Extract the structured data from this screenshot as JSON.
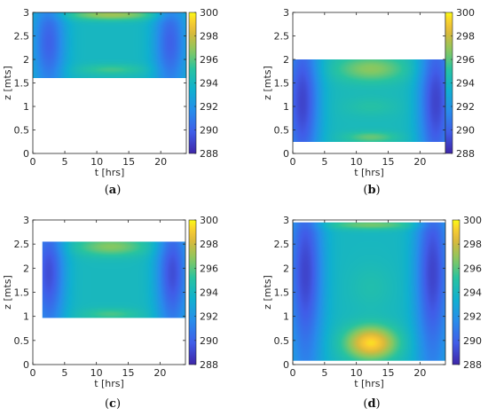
{
  "chart_data": [
    {
      "type": "heatmap",
      "caption_open": "(",
      "caption_letter": "a",
      "caption_close": ")",
      "xlabel": "t [hrs]",
      "ylabel": "z [mts]",
      "xlim": [
        0,
        24
      ],
      "ylim": [
        0,
        3
      ],
      "xticks": [
        0,
        5,
        10,
        15,
        20
      ],
      "yticks": [
        0,
        0.5,
        1,
        1.5,
        2,
        2.5,
        3
      ],
      "x_range": [
        0,
        24
      ],
      "z_range": [
        1.6,
        3.0
      ],
      "colorbar": {
        "min": 288,
        "max": 300,
        "ticks": [
          288,
          290,
          292,
          294,
          296,
          298,
          300
        ]
      },
      "field": {
        "background": 294.0,
        "hotspots": [
          {
            "t": 12.3,
            "z": 2.95,
            "dt": 7.0,
            "dz": 0.12,
            "amp": 3.2
          },
          {
            "t": 12.3,
            "z": 1.78,
            "dt": 5.0,
            "dz": 0.12,
            "amp": 1.6
          }
        ],
        "cold_edges": {
          "t_left": 2.5,
          "t_right": 21.5,
          "width": 2.6,
          "amp": -4.0,
          "z_center": 2.35,
          "z_width": 0.8
        }
      }
    },
    {
      "type": "heatmap",
      "caption_open": "(",
      "caption_letter": "b",
      "caption_close": ")",
      "xlabel": "t [hrs]",
      "ylabel": "z [mts]",
      "xlim": [
        0,
        24
      ],
      "ylim": [
        0,
        3
      ],
      "xticks": [
        0,
        5,
        10,
        15,
        20
      ],
      "yticks": [
        0,
        0.5,
        1,
        1.5,
        2,
        2.5,
        3
      ],
      "x_range": [
        0,
        24
      ],
      "z_range": [
        0.25,
        2.0
      ],
      "colorbar": {
        "min": 288,
        "max": 300,
        "ticks": [
          288,
          290,
          292,
          294,
          296,
          298,
          300
        ]
      },
      "field": {
        "background": 294.2,
        "hotspots": [
          {
            "t": 12.3,
            "z": 1.8,
            "dt": 5.5,
            "dz": 0.28,
            "amp": 2.6
          },
          {
            "t": 12.3,
            "z": 0.35,
            "dt": 4.0,
            "dz": 0.12,
            "amp": 2.0
          },
          {
            "t": 12.3,
            "z": 1.0,
            "dt": 4.0,
            "dz": 0.2,
            "amp": 0.8
          }
        ],
        "cold_edges": {
          "t_left": 1.5,
          "t_right": 22.5,
          "width": 2.8,
          "amp": -5.2,
          "z_center": 1.1,
          "z_width": 1.2
        }
      }
    },
    {
      "type": "heatmap",
      "caption_open": "(",
      "caption_letter": "c",
      "caption_close": ")",
      "xlabel": "t [hrs]",
      "ylabel": "z [mts]",
      "xlim": [
        0,
        24
      ],
      "ylim": [
        0,
        3
      ],
      "xticks": [
        0,
        5,
        10,
        15,
        20
      ],
      "yticks": [
        0,
        0.5,
        1,
        1.5,
        2,
        2.5,
        3
      ],
      "x_range": [
        1.5,
        24
      ],
      "z_range": [
        0.97,
        2.55
      ],
      "colorbar": {
        "min": 288,
        "max": 300,
        "ticks": [
          288,
          290,
          292,
          294,
          296,
          298,
          300
        ]
      },
      "field": {
        "background": 294.1,
        "hotspots": [
          {
            "t": 12.3,
            "z": 2.45,
            "dt": 5.5,
            "dz": 0.2,
            "amp": 2.6
          },
          {
            "t": 12.3,
            "z": 1.05,
            "dt": 4.5,
            "dz": 0.12,
            "amp": 1.6
          }
        ],
        "cold_edges": {
          "t_left": 2.5,
          "t_right": 22.0,
          "width": 2.6,
          "amp": -4.8,
          "z_center": 1.9,
          "z_width": 0.9
        }
      }
    },
    {
      "type": "heatmap",
      "caption_open": "(",
      "caption_letter": "d",
      "caption_close": ")",
      "xlabel": "t [hrs]",
      "ylabel": "z [mts]",
      "xlim": [
        0,
        24
      ],
      "ylim": [
        0,
        3
      ],
      "xticks": [
        0,
        5,
        10,
        15,
        20
      ],
      "yticks": [
        0,
        0.5,
        1,
        1.5,
        2,
        2.5,
        3
      ],
      "x_range": [
        0,
        24
      ],
      "z_range": [
        0.08,
        2.95
      ],
      "colorbar": {
        "min": 288,
        "max": 300,
        "ticks": [
          288,
          290,
          292,
          294,
          296,
          298,
          300
        ]
      },
      "field": {
        "background": 294.0,
        "hotspots": [
          {
            "t": 12.3,
            "z": 0.45,
            "dt": 4.0,
            "dz": 0.35,
            "amp": 5.5
          },
          {
            "t": 12.3,
            "z": 2.9,
            "dt": 7.0,
            "dz": 0.1,
            "amp": 2.4
          },
          {
            "t": 12.3,
            "z": 1.6,
            "dt": 3.5,
            "dz": 0.5,
            "amp": 0.7
          }
        ],
        "cold_edges": {
          "t_left": 2.0,
          "t_right": 22.0,
          "width": 2.8,
          "amp": -5.0,
          "z_center": 1.9,
          "z_width": 1.4
        }
      }
    }
  ]
}
